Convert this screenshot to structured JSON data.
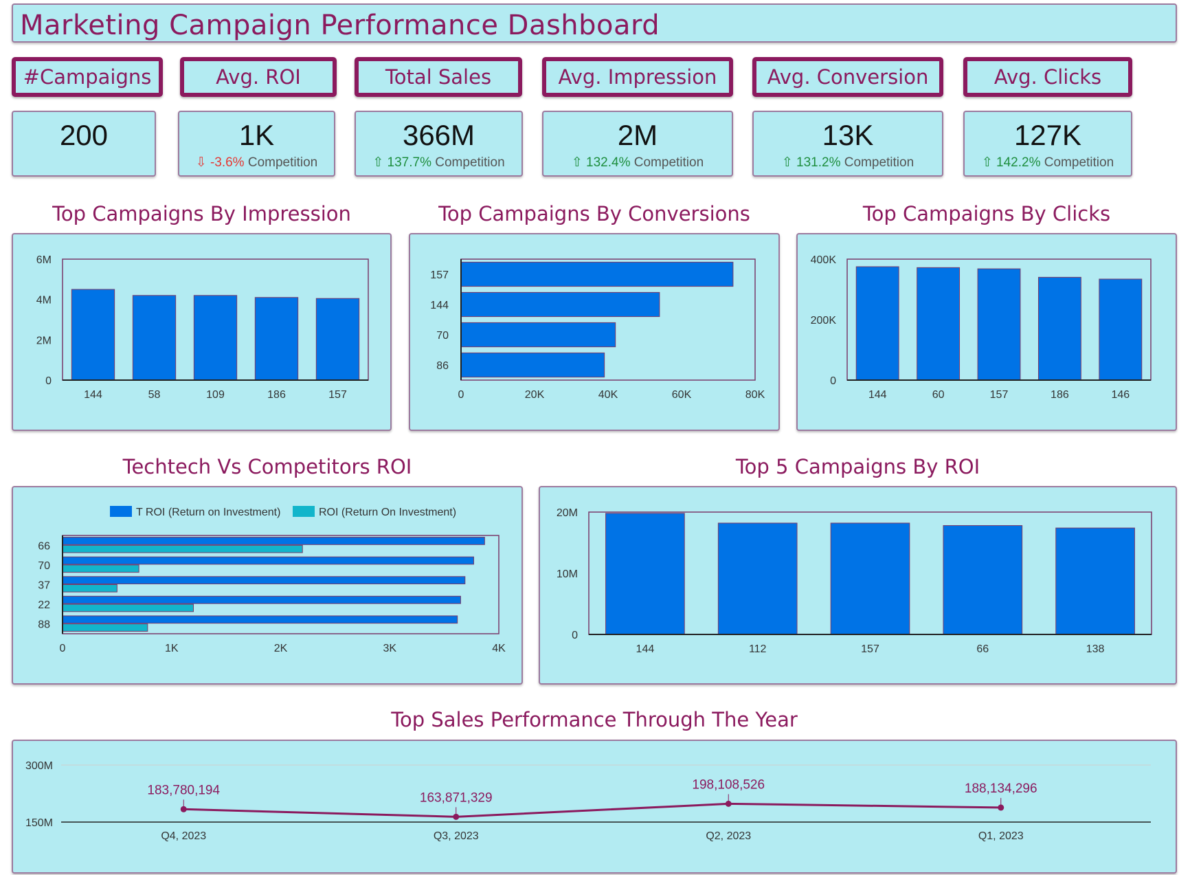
{
  "header": {
    "title": "Marketing Campaign Performance Dashboard"
  },
  "kpis": [
    {
      "label": "#Campaigns",
      "value": "200",
      "trend": "",
      "change": "",
      "suffix": ""
    },
    {
      "label": "Avg. ROI",
      "value": "1K",
      "trend": "down",
      "change": "-3.6%",
      "suffix": "Competition"
    },
    {
      "label": "Total Sales",
      "value": "366M",
      "trend": "up",
      "change": "137.7%",
      "suffix": "Competition"
    },
    {
      "label": "Avg. Impression",
      "value": "2M",
      "trend": "up",
      "change": "132.4%",
      "suffix": "Competition"
    },
    {
      "label": "Avg. Conversion",
      "value": "13K",
      "trend": "up",
      "change": "131.2%",
      "suffix": "Competition"
    },
    {
      "label": "Avg. Clicks",
      "value": "127K",
      "trend": "up",
      "change": "142.2%",
      "suffix": "Competition"
    }
  ],
  "colors": {
    "accent": "#8b1a5e",
    "panel": "#b3ebf2",
    "bar": "#0073e6",
    "bar2": "#12b5cb",
    "up": "#1e8e3e",
    "down": "#e53935"
  },
  "chart_data": [
    {
      "id": "impression",
      "type": "bar",
      "title": "Top Campaigns By Impression",
      "categories": [
        "144",
        "58",
        "109",
        "186",
        "157"
      ],
      "values": [
        4500000,
        4200000,
        4200000,
        4100000,
        4050000
      ],
      "ylim": [
        0,
        6000000
      ],
      "yticks": [
        0,
        2000000,
        4000000,
        6000000
      ],
      "ytick_labels": [
        "0",
        "2M",
        "4M",
        "6M"
      ]
    },
    {
      "id": "conversions",
      "type": "bar",
      "orientation": "horizontal",
      "title": "Top Campaigns By Conversions",
      "categories": [
        "157",
        "144",
        "70",
        "86"
      ],
      "values": [
        74000,
        54000,
        42000,
        39000
      ],
      "xlim": [
        0,
        80000
      ],
      "xticks": [
        0,
        20000,
        40000,
        60000,
        80000
      ],
      "xtick_labels": [
        "0",
        "20K",
        "40K",
        "60K",
        "80K"
      ]
    },
    {
      "id": "clicks",
      "type": "bar",
      "title": "Top Campaigns By Clicks",
      "categories": [
        "144",
        "60",
        "157",
        "186",
        "146"
      ],
      "values": [
        375000,
        372000,
        368000,
        340000,
        334000
      ],
      "ylim": [
        0,
        400000
      ],
      "yticks": [
        0,
        200000,
        400000
      ],
      "ytick_labels": [
        "0",
        "200K",
        "400K"
      ]
    },
    {
      "id": "roi_vs",
      "type": "bar",
      "orientation": "horizontal",
      "title": "Techtech Vs Competitors ROI",
      "categories": [
        "66",
        "70",
        "37",
        "22",
        "88"
      ],
      "series": [
        {
          "name": "T ROI (Return on Investment)",
          "values": [
            3870,
            3770,
            3690,
            3650,
            3620
          ]
        },
        {
          "name": "ROI (Return On Investment)",
          "values": [
            2200,
            700,
            500,
            1200,
            780
          ]
        }
      ],
      "xlim": [
        0,
        4000
      ],
      "xticks": [
        0,
        1000,
        2000,
        3000,
        4000
      ],
      "xtick_labels": [
        "0",
        "1K",
        "2K",
        "3K",
        "4K"
      ],
      "legend": "top"
    },
    {
      "id": "roi_top5",
      "type": "bar",
      "title": "Top 5 Campaigns By ROI",
      "categories": [
        "144",
        "112",
        "157",
        "66",
        "138"
      ],
      "values": [
        19800000,
        18200000,
        18200000,
        17800000,
        17400000
      ],
      "ylim": [
        0,
        20000000
      ],
      "yticks": [
        0,
        10000000,
        20000000
      ],
      "ytick_labels": [
        "0",
        "10M",
        "20M"
      ]
    },
    {
      "id": "sales_year",
      "type": "line",
      "title": "Top Sales Performance Through The Year",
      "categories": [
        "Q4, 2023",
        "Q3, 2023",
        "Q2, 2023",
        "Q1, 2023"
      ],
      "values": [
        183780194,
        163871329,
        198108526,
        188134296
      ],
      "data_labels": [
        "183,780,194",
        "163,871,329",
        "198,108,526",
        "188,134,296"
      ],
      "ytick_labels": [
        "150M",
        "300M"
      ]
    }
  ]
}
